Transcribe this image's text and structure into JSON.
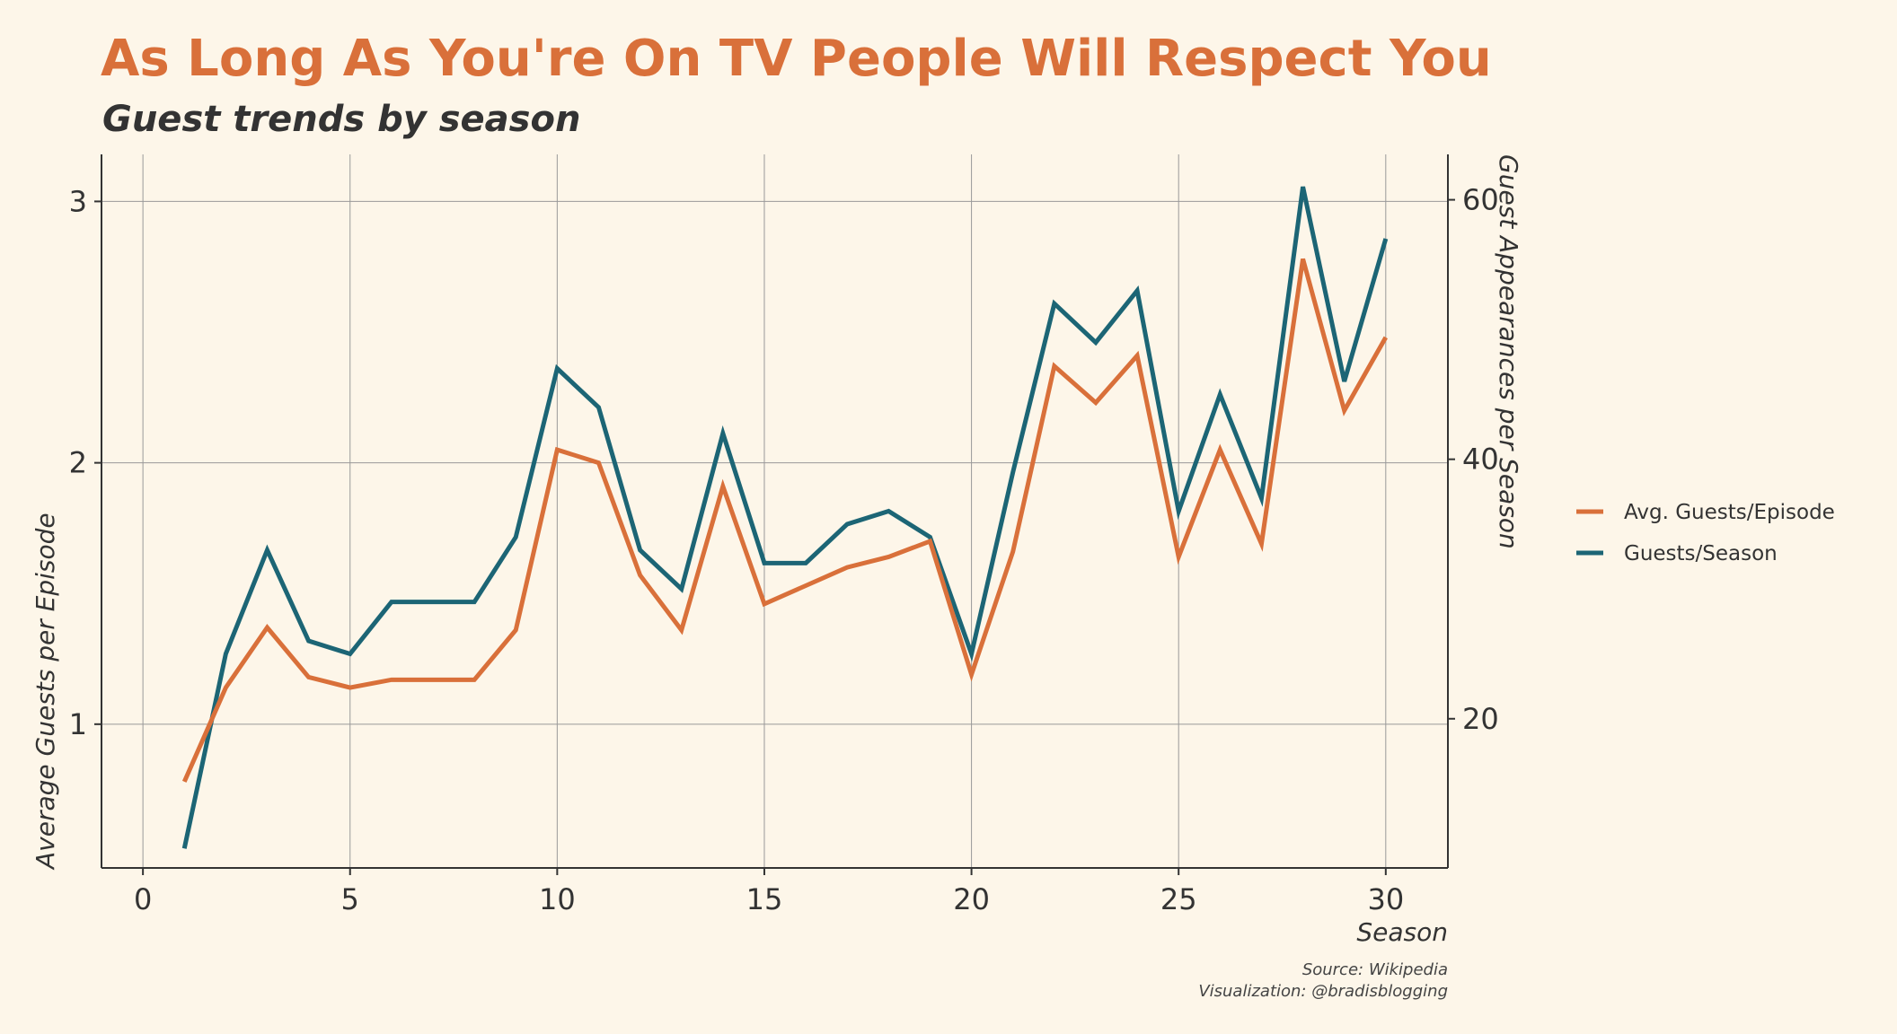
{
  "chart_data": {
    "type": "line",
    "title": "As Long As You're On TV People Will Respect You",
    "subtitle": "Guest trends by season",
    "xlabel": "Season",
    "ylabel_left": "Average Guests per Episode",
    "ylabel_right": "Guest Appearances per Season",
    "xlim": [
      -1,
      31.5
    ],
    "ylim_left": [
      0.45,
      3.18
    ],
    "ylim_right": [
      8.5,
      63.5
    ],
    "x_ticks": [
      "0",
      "5",
      "10",
      "15",
      "20",
      "25",
      "30"
    ],
    "y_left_ticks": [
      "1",
      "2",
      "3"
    ],
    "y_right_ticks": [
      "20",
      "40",
      "60"
    ],
    "grid": true,
    "legend_placement": "right",
    "x": [
      1,
      2,
      3,
      4,
      5,
      6,
      7,
      8,
      9,
      10,
      11,
      12,
      13,
      14,
      15,
      16,
      17,
      18,
      19,
      20,
      21,
      22,
      23,
      24,
      25,
      26,
      27,
      28,
      29,
      30
    ],
    "series": [
      {
        "name": "Avg. Guests/Episode",
        "axis": "left",
        "color": "#d9703a",
        "values": [
          0.78,
          1.14,
          1.37,
          1.18,
          1.14,
          1.17,
          1.17,
          1.17,
          1.36,
          2.05,
          2.0,
          1.57,
          1.36,
          1.91,
          1.46,
          1.53,
          1.6,
          1.64,
          1.7,
          1.19,
          1.66,
          2.37,
          2.23,
          2.41,
          1.64,
          2.05,
          1.69,
          2.78,
          2.2,
          2.48
        ]
      },
      {
        "name": "Guests/Season",
        "axis": "right",
        "color": "#1c6575",
        "values": [
          10,
          25,
          33,
          26,
          25,
          29,
          29,
          29,
          34,
          47,
          44,
          33,
          30,
          42,
          32,
          32,
          35,
          36,
          34,
          25,
          39,
          52,
          49,
          53,
          36,
          45,
          37,
          61,
          46,
          57
        ]
      }
    ],
    "source": "Source: Wikipedia",
    "credit": "Visualization: @bradisblogging"
  },
  "colors": {
    "title": "#d9703a",
    "background": "#fdf6e9",
    "text": "#333333"
  }
}
